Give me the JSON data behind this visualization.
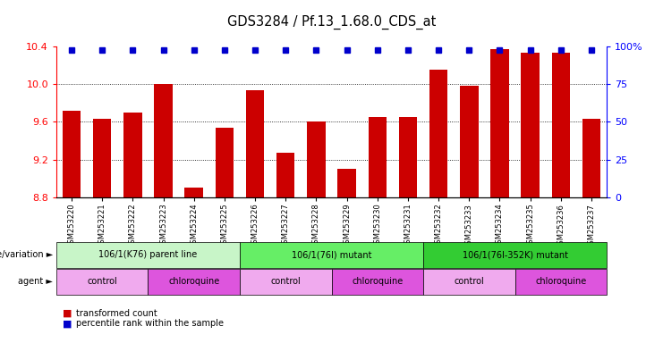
{
  "title": "GDS3284 / Pf.13_1.68.0_CDS_at",
  "samples": [
    "GSM253220",
    "GSM253221",
    "GSM253222",
    "GSM253223",
    "GSM253224",
    "GSM253225",
    "GSM253226",
    "GSM253227",
    "GSM253228",
    "GSM253229",
    "GSM253230",
    "GSM253231",
    "GSM253232",
    "GSM253233",
    "GSM253234",
    "GSM253235",
    "GSM253236",
    "GSM253237"
  ],
  "transformed_count": [
    9.72,
    9.63,
    9.7,
    10.0,
    8.9,
    9.54,
    9.93,
    9.27,
    9.6,
    9.1,
    9.65,
    9.65,
    10.15,
    9.98,
    10.37,
    10.33,
    10.33,
    9.63
  ],
  "percentile_show": [
    true,
    true,
    true,
    true,
    true,
    true,
    true,
    true,
    true,
    true,
    true,
    true,
    true,
    true,
    true,
    true,
    true,
    true
  ],
  "bar_color": "#cc0000",
  "dot_color": "#0000cc",
  "ylim_left": [
    8.8,
    10.4
  ],
  "ylim_right": [
    0,
    100
  ],
  "yticks_left": [
    8.8,
    9.2,
    9.6,
    10.0,
    10.4
  ],
  "yticks_right": [
    0,
    25,
    50,
    75,
    100
  ],
  "ytick_labels_right": [
    "0",
    "25",
    "50",
    "75",
    "100%"
  ],
  "grid_values": [
    9.2,
    9.6,
    10.0
  ],
  "genotype_groups": [
    {
      "label": "106/1(K76) parent line",
      "start": 0,
      "end": 5,
      "color": "#c8f5c8"
    },
    {
      "label": "106/1(76I) mutant",
      "start": 6,
      "end": 11,
      "color": "#66ee66"
    },
    {
      "label": "106/1(76I-352K) mutant",
      "start": 12,
      "end": 17,
      "color": "#33cc33"
    }
  ],
  "agent_groups": [
    {
      "label": "control",
      "start": 0,
      "end": 2,
      "color": "#f0aaee"
    },
    {
      "label": "chloroquine",
      "start": 3,
      "end": 5,
      "color": "#dd55dd"
    },
    {
      "label": "control",
      "start": 6,
      "end": 8,
      "color": "#f0aaee"
    },
    {
      "label": "chloroquine",
      "start": 9,
      "end": 11,
      "color": "#dd55dd"
    },
    {
      "label": "control",
      "start": 12,
      "end": 14,
      "color": "#f0aaee"
    },
    {
      "label": "chloroquine",
      "start": 15,
      "end": 17,
      "color": "#dd55dd"
    }
  ],
  "genotype_label": "genotype/variation",
  "agent_label": "agent",
  "legend_red": "transformed count",
  "legend_blue": "percentile rank within the sample",
  "background_color": "#ffffff",
  "bar_width": 0.6,
  "dot_size": 5,
  "percentile_dot_value": 10.36
}
